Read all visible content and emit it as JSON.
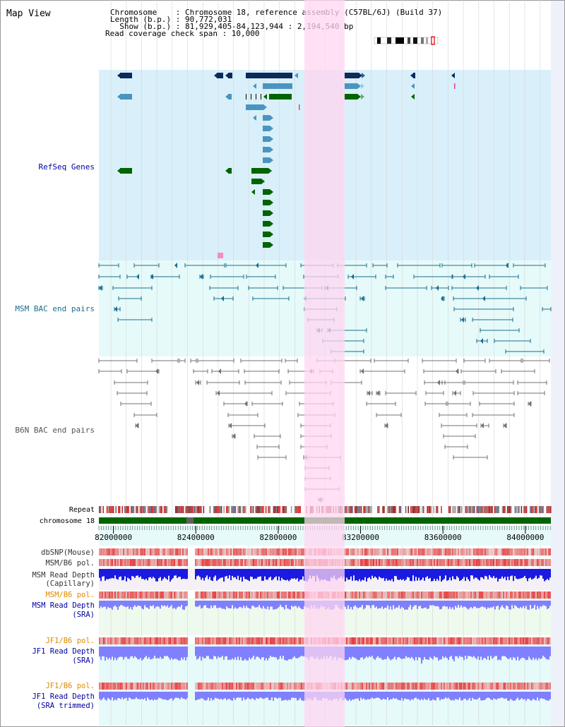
{
  "header": {
    "title": "Map View",
    "info": [
      "Chromosome    : Chromosome 18, reference assembly (C57BL/6J) (Build 37)",
      "Length (b.p.) : 90,772,031",
      "  Show (b.p.) : 81,929,405-84,123,944 : 2,194,540 bp",
      "Read coverage check span : 10,000"
    ]
  },
  "tracks": {
    "refseq": "RefSeq Genes",
    "msm_bac": "MSM BAC end pairs",
    "b6n_bac": "B6N BAC end pairs",
    "repeat": "Repeat",
    "chromosome": "chromosome 18",
    "dbsnp": "dbSNP(Mouse)",
    "msm_b6_pol_cap": "MSM/B6 pol.",
    "msm_depth_cap_1": "MSM Read Depth",
    "msm_depth_cap_2": "(Capillary)",
    "msm_b6_pol_sra": "MSM/B6 pol.",
    "msm_depth_sra_1": "MSM Read Depth",
    "msm_depth_sra_2": "(SRA)",
    "jf1_b6_pol_sra": "JF1/B6 pol.",
    "jf1_depth_sra_1": "JF1 Read Depth",
    "jf1_depth_sra_2": "(SRA)",
    "jf1_b6_pol_trim": "JF1/B6 pol.",
    "jf1_depth_trim_1": "JF1 Read Depth",
    "jf1_depth_trim_2": "(SRA trimmed)"
  },
  "axis": {
    "range": [
      81929405,
      84123944
    ],
    "ticks": [
      "82000000",
      "82400000",
      "82800000",
      "83200000",
      "83600000",
      "84000000"
    ]
  },
  "colors": {
    "refseq_bg": "#d9f0fa",
    "bac_bg": "#e6fafa",
    "highlight": "#ffd6f0",
    "gene_dark": "#0d2a5c",
    "gene_mid": "#4a95c0",
    "gene_green": "#006400",
    "msm_line": "#1a6e8e",
    "b6n_line": "#707070",
    "label_blue": "#0000a0",
    "label_orange": "#e08a00",
    "snp_red": "#e84040",
    "depth_blue": "#1a1ae0",
    "depth_light": "#8080ff"
  }
}
